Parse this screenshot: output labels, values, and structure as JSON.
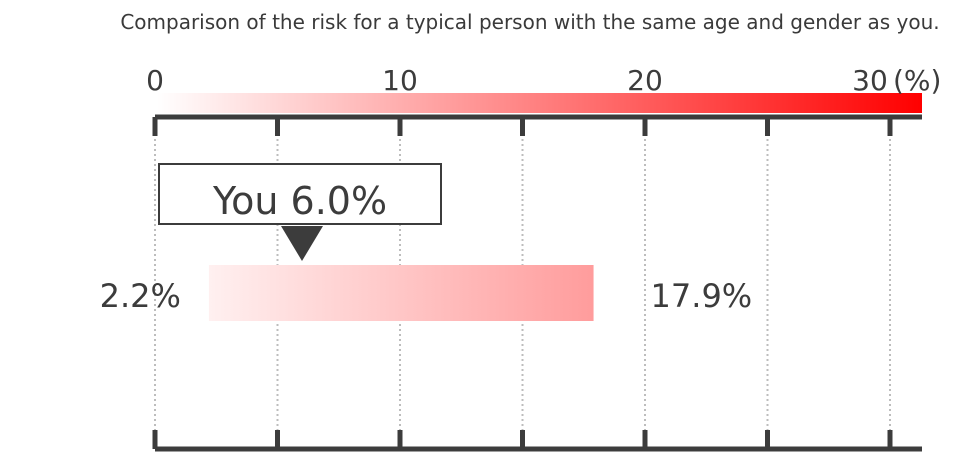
{
  "chart_data": {
    "type": "bar",
    "title": "Comparison of the risk for a typical person with the same age and gender as you.",
    "unit": "(%)",
    "xlim": [
      0,
      30
    ],
    "major_ticks": [
      0,
      10,
      20,
      30
    ],
    "minor_ticks": [
      5,
      15,
      25
    ],
    "tick_labels": [
      "0",
      "10",
      "20",
      "30"
    ],
    "grid": true,
    "range": {
      "low": 2.2,
      "high": 17.9,
      "low_label": "2.2%",
      "high_label": "17.9%"
    },
    "you": {
      "value": 6.0,
      "label": "You 6.0%"
    },
    "colors": {
      "scale_start": "#ffffff",
      "scale_end": "#ff0000",
      "range_start": "#fff0f0",
      "range_end": "#ff9c9c",
      "axis": "#3c3c3c",
      "grid": "#bdbdbd"
    }
  }
}
